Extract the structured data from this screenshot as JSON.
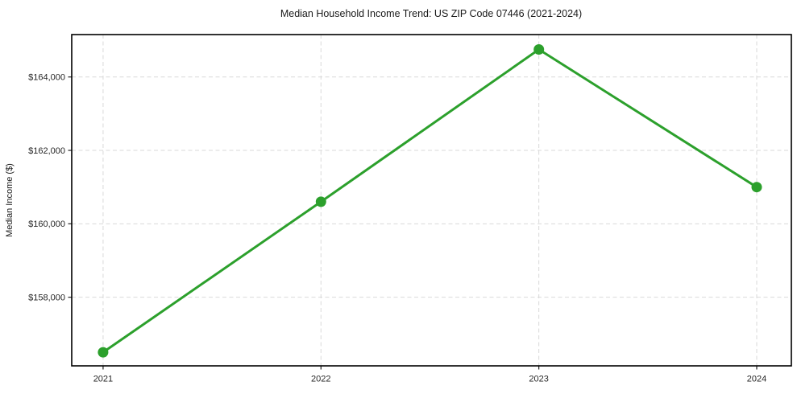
{
  "title": "Median Household Income Trend: US ZIP Code 07446 (2021-2024)",
  "chart_data": {
    "type": "line",
    "title": "Median Household Income Trend: US ZIP Code 07446 (2021-2024)",
    "xlabel": "",
    "ylabel": "Median Income ($)",
    "x": [
      2021,
      2022,
      2023,
      2024
    ],
    "series": [
      {
        "name": "Median Household Income",
        "values": [
          156500,
          160600,
          164750,
          161000
        ]
      }
    ],
    "xtick_labels": [
      "2021",
      "2022",
      "2023",
      "2024"
    ],
    "yticks": [
      158000,
      160000,
      162000,
      164000
    ],
    "ytick_labels": [
      "$158,000",
      "$160,000",
      "$162,000",
      "$164,000"
    ],
    "xlim": [
      2020.856,
      2024.159
    ],
    "ylim": [
      156130,
      165155
    ],
    "grid": true,
    "grid_style": "dashed",
    "legend": "none",
    "marker": "circle",
    "colors": {
      "line": "#2ca02c",
      "marker": "#2ca02c",
      "grid": "#d9d9d9",
      "spine": "#000000",
      "text": "#1a1a1a",
      "background": "#ffffff"
    }
  }
}
